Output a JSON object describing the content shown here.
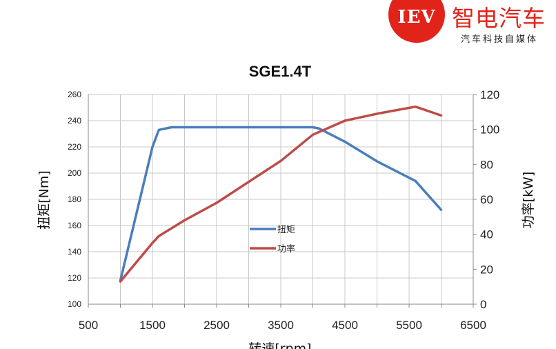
{
  "logo": {
    "mark": "IEV",
    "name": "智电汽车",
    "tagline": "汽车科技自媒体",
    "color": "#e2231a"
  },
  "chart_data": {
    "type": "line",
    "title": "SGE1.4T",
    "xlabel": "转速[rpm]",
    "ylabel_left": "扭矩[Nm]",
    "ylabel_right": "功率[kW]",
    "xlim": [
      500,
      6500
    ],
    "xticks": [
      500,
      1500,
      2500,
      3500,
      4500,
      5500,
      6500
    ],
    "xgrid_step": 500,
    "ylim_left": [
      100,
      260
    ],
    "yticks_left": [
      100,
      120,
      140,
      160,
      180,
      200,
      220,
      240,
      260
    ],
    "ylim_right": [
      0,
      120
    ],
    "yticks_right": [
      0,
      20,
      40,
      60,
      80,
      100,
      120
    ],
    "grid": true,
    "legend_position": "center-left",
    "series": [
      {
        "name": "扭矩",
        "axis": "left",
        "color": "#4a7ebb",
        "points": [
          [
            1000,
            118
          ],
          [
            1500,
            220
          ],
          [
            1600,
            233
          ],
          [
            1800,
            235
          ],
          [
            4000,
            235
          ],
          [
            4100,
            234
          ],
          [
            4500,
            224
          ],
          [
            5000,
            209
          ],
          [
            5600,
            194
          ],
          [
            6000,
            172
          ]
        ]
      },
      {
        "name": "功率",
        "axis": "right",
        "color": "#be4b48",
        "points": [
          [
            1000,
            13
          ],
          [
            1500,
            35
          ],
          [
            1600,
            39
          ],
          [
            2000,
            48
          ],
          [
            2500,
            58
          ],
          [
            3000,
            70
          ],
          [
            3500,
            82
          ],
          [
            4000,
            97
          ],
          [
            4500,
            105
          ],
          [
            5000,
            109
          ],
          [
            5600,
            113
          ],
          [
            6000,
            108
          ]
        ]
      }
    ]
  }
}
